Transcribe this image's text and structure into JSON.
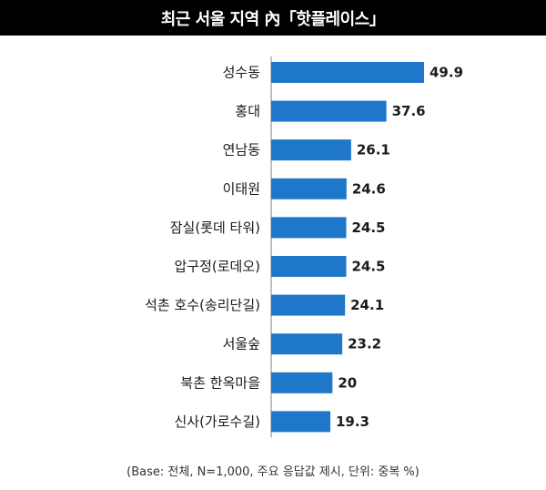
{
  "title": "최근 서울 지역 內「핫플레이스」",
  "footnote": "(Base: 전체, N=1,000, 주요 응답값 제시, 단위: 중복 %)",
  "colors": {
    "bar": "#1f77c9",
    "title_bg": "#000000",
    "axis": "#808080"
  },
  "chart_data": {
    "type": "bar",
    "orientation": "horizontal",
    "categories": [
      "성수동",
      "홍대",
      "연남동",
      "이태원",
      "잠실(롯데 타워)",
      "압구정(로데오)",
      "석촌 호수(송리단길)",
      "서울숲",
      "북촌 한옥마을",
      "신사(가로수길)"
    ],
    "values": [
      49.9,
      37.6,
      26.1,
      24.6,
      24.5,
      24.5,
      24.1,
      23.2,
      20,
      19.3
    ],
    "value_labels": [
      "49.9",
      "37.6",
      "26.1",
      "24.6",
      "24.5",
      "24.5",
      "24.1",
      "23.2",
      "20",
      "19.3"
    ],
    "xlim": [
      0,
      49.9
    ],
    "grid": false,
    "legend": "none"
  }
}
